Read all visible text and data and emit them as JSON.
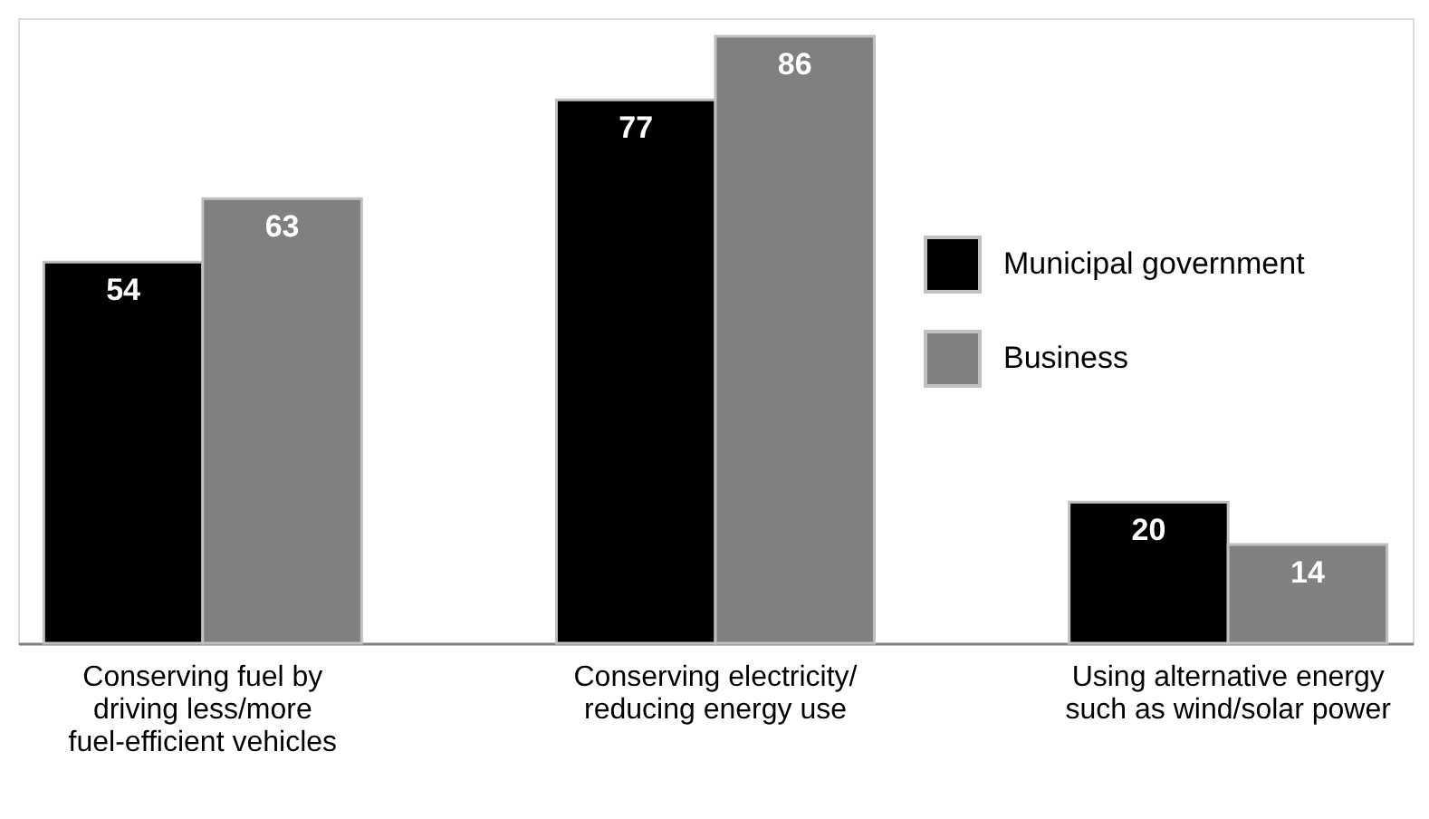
{
  "chart_data": {
    "type": "bar",
    "categories": [
      "Conserving fuel by\ndriving less/more\nfuel-efficient vehicles",
      "Conserving electricity/\nreducing energy use",
      "Using alternative energy\nsuch as wind/solar power"
    ],
    "series": [
      {
        "name": "Municipal government",
        "color": "#000000",
        "values": [
          54,
          77,
          20
        ]
      },
      {
        "name": "Business",
        "color": "#808080",
        "values": [
          63,
          86,
          14
        ]
      }
    ],
    "data_labels": true,
    "legend": "right"
  }
}
